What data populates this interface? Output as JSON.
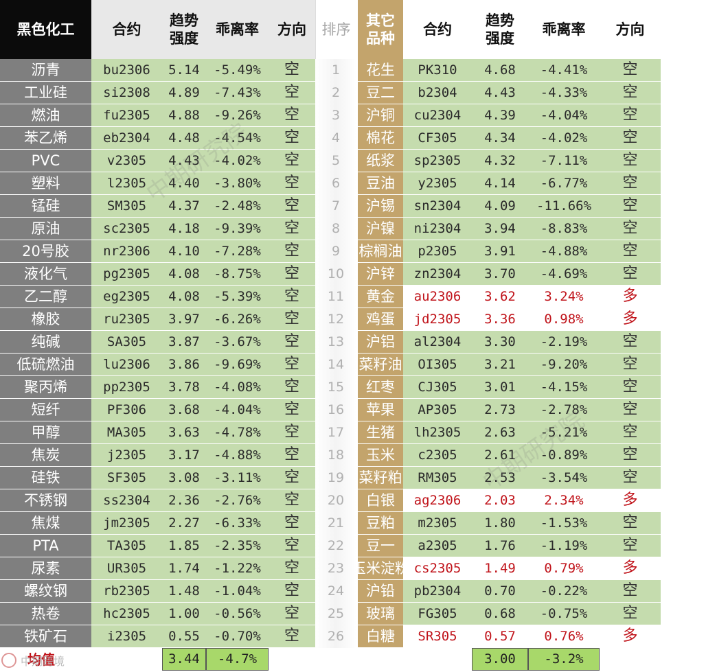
{
  "headers": {
    "cat_left": "黑色化工",
    "contract": "合约",
    "trend": "趋势\n强度",
    "deviation": "乖离率",
    "direction": "方向",
    "rank": "排序",
    "cat_right": "其它\n品种"
  },
  "rows": [
    {
      "rank": "1",
      "l_name": "沥青",
      "l_code": "bu2306",
      "l_trend": "5.14",
      "l_dev": "-5.49%",
      "l_dir": "空",
      "r_name": "花生",
      "r_code": "PK310",
      "r_trend": "4.68",
      "r_dev": "-4.41%",
      "r_dir": "空"
    },
    {
      "rank": "2",
      "l_name": "工业硅",
      "l_code": "si2308",
      "l_trend": "4.89",
      "l_dev": "-7.43%",
      "l_dir": "空",
      "r_name": "豆二",
      "r_code": "b2304",
      "r_trend": "4.43",
      "r_dev": "-4.33%",
      "r_dir": "空"
    },
    {
      "rank": "3",
      "l_name": "燃油",
      "l_code": "fu2305",
      "l_trend": "4.88",
      "l_dev": "-9.26%",
      "l_dir": "空",
      "r_name": "沪铜",
      "r_code": "cu2304",
      "r_trend": "4.39",
      "r_dev": "-4.04%",
      "r_dir": "空"
    },
    {
      "rank": "4",
      "l_name": "苯乙烯",
      "l_code": "eb2304",
      "l_trend": "4.48",
      "l_dev": "-4.54%",
      "l_dir": "空",
      "r_name": "棉花",
      "r_code": "CF305",
      "r_trend": "4.34",
      "r_dev": "-4.02%",
      "r_dir": "空"
    },
    {
      "rank": "5",
      "l_name": "PVC",
      "l_code": "v2305",
      "l_trend": "4.43",
      "l_dev": "-4.02%",
      "l_dir": "空",
      "r_name": "纸浆",
      "r_code": "sp2305",
      "r_trend": "4.32",
      "r_dev": "-7.11%",
      "r_dir": "空"
    },
    {
      "rank": "6",
      "l_name": "塑料",
      "l_code": "l2305",
      "l_trend": "4.40",
      "l_dev": "-3.80%",
      "l_dir": "空",
      "r_name": "豆油",
      "r_code": "y2305",
      "r_trend": "4.14",
      "r_dev": "-6.77%",
      "r_dir": "空"
    },
    {
      "rank": "7",
      "l_name": "锰硅",
      "l_code": "SM305",
      "l_trend": "4.37",
      "l_dev": "-2.48%",
      "l_dir": "空",
      "r_name": "沪锡",
      "r_code": "sn2304",
      "r_trend": "4.09",
      "r_dev": "-11.66%",
      "r_dir": "空"
    },
    {
      "rank": "8",
      "l_name": "原油",
      "l_code": "sc2305",
      "l_trend": "4.18",
      "l_dev": "-9.39%",
      "l_dir": "空",
      "r_name": "沪镍",
      "r_code": "ni2304",
      "r_trend": "3.94",
      "r_dev": "-8.83%",
      "r_dir": "空"
    },
    {
      "rank": "9",
      "l_name": "20号胶",
      "l_code": "nr2306",
      "l_trend": "4.10",
      "l_dev": "-7.28%",
      "l_dir": "空",
      "r_name": "棕榈油",
      "r_code": "p2305",
      "r_trend": "3.91",
      "r_dev": "-4.88%",
      "r_dir": "空"
    },
    {
      "rank": "10",
      "l_name": "液化气",
      "l_code": "pg2305",
      "l_trend": "4.08",
      "l_dev": "-8.75%",
      "l_dir": "空",
      "r_name": "沪锌",
      "r_code": "zn2304",
      "r_trend": "3.70",
      "r_dev": "-4.69%",
      "r_dir": "空"
    },
    {
      "rank": "11",
      "l_name": "乙二醇",
      "l_code": "eg2305",
      "l_trend": "4.08",
      "l_dev": "-5.39%",
      "l_dir": "空",
      "r_name": "黄金",
      "r_code": "au2306",
      "r_trend": "3.62",
      "r_dev": "3.24%",
      "r_dir": "多"
    },
    {
      "rank": "12",
      "l_name": "橡胶",
      "l_code": "ru2305",
      "l_trend": "3.97",
      "l_dev": "-6.26%",
      "l_dir": "空",
      "r_name": "鸡蛋",
      "r_code": "jd2305",
      "r_trend": "3.36",
      "r_dev": "0.98%",
      "r_dir": "多"
    },
    {
      "rank": "13",
      "l_name": "纯碱",
      "l_code": "SA305",
      "l_trend": "3.87",
      "l_dev": "-3.67%",
      "l_dir": "空",
      "r_name": "沪铝",
      "r_code": "al2304",
      "r_trend": "3.30",
      "r_dev": "-2.19%",
      "r_dir": "空"
    },
    {
      "rank": "14",
      "l_name": "低硫燃油",
      "l_code": "lu2306",
      "l_trend": "3.86",
      "l_dev": "-9.69%",
      "l_dir": "空",
      "r_name": "菜籽油",
      "r_code": "OI305",
      "r_trend": "3.21",
      "r_dev": "-9.20%",
      "r_dir": "空"
    },
    {
      "rank": "15",
      "l_name": "聚丙烯",
      "l_code": "pp2305",
      "l_trend": "3.78",
      "l_dev": "-4.08%",
      "l_dir": "空",
      "r_name": "红枣",
      "r_code": "CJ305",
      "r_trend": "3.01",
      "r_dev": "-4.15%",
      "r_dir": "空"
    },
    {
      "rank": "16",
      "l_name": "短纤",
      "l_code": "PF306",
      "l_trend": "3.68",
      "l_dev": "-4.04%",
      "l_dir": "空",
      "r_name": "苹果",
      "r_code": "AP305",
      "r_trend": "2.73",
      "r_dev": "-2.78%",
      "r_dir": "空"
    },
    {
      "rank": "17",
      "l_name": "甲醇",
      "l_code": "MA305",
      "l_trend": "3.63",
      "l_dev": "-4.78%",
      "l_dir": "空",
      "r_name": "生猪",
      "r_code": "lh2305",
      "r_trend": "2.63",
      "r_dev": "-5.21%",
      "r_dir": "空"
    },
    {
      "rank": "18",
      "l_name": "焦炭",
      "l_code": "j2305",
      "l_trend": "3.17",
      "l_dev": "-4.88%",
      "l_dir": "空",
      "r_name": "玉米",
      "r_code": "c2305",
      "r_trend": "2.61",
      "r_dev": "-0.89%",
      "r_dir": "空"
    },
    {
      "rank": "19",
      "l_name": "硅铁",
      "l_code": "SF305",
      "l_trend": "3.08",
      "l_dev": "-3.11%",
      "l_dir": "空",
      "r_name": "菜籽粕",
      "r_code": "RM305",
      "r_trend": "2.53",
      "r_dev": "-3.54%",
      "r_dir": "空"
    },
    {
      "rank": "20",
      "l_name": "不锈钢",
      "l_code": "ss2304",
      "l_trend": "2.36",
      "l_dev": "-2.76%",
      "l_dir": "空",
      "r_name": "白银",
      "r_code": "ag2306",
      "r_trend": "2.03",
      "r_dev": "2.34%",
      "r_dir": "多"
    },
    {
      "rank": "21",
      "l_name": "焦煤",
      "l_code": "jm2305",
      "l_trend": "2.27",
      "l_dev": "-6.33%",
      "l_dir": "空",
      "r_name": "豆粕",
      "r_code": "m2305",
      "r_trend": "1.80",
      "r_dev": "-1.53%",
      "r_dir": "空"
    },
    {
      "rank": "22",
      "l_name": "PTA",
      "l_code": "TA305",
      "l_trend": "1.85",
      "l_dev": "-2.35%",
      "l_dir": "空",
      "r_name": "豆一",
      "r_code": "a2305",
      "r_trend": "1.76",
      "r_dev": "-1.19%",
      "r_dir": "空"
    },
    {
      "rank": "23",
      "l_name": "尿素",
      "l_code": "UR305",
      "l_trend": "1.74",
      "l_dev": "-1.22%",
      "l_dir": "空",
      "r_name": "玉米淀粉",
      "r_code": "cs2305",
      "r_trend": "1.49",
      "r_dev": "0.79%",
      "r_dir": "多"
    },
    {
      "rank": "24",
      "l_name": "螺纹钢",
      "l_code": "rb2305",
      "l_trend": "1.48",
      "l_dev": "-1.04%",
      "l_dir": "空",
      "r_name": "沪铅",
      "r_code": "pb2304",
      "r_trend": "0.70",
      "r_dev": "-0.22%",
      "r_dir": "空"
    },
    {
      "rank": "25",
      "l_name": "热卷",
      "l_code": "hc2305",
      "l_trend": "1.00",
      "l_dev": "-0.56%",
      "l_dir": "空",
      "r_name": "玻璃",
      "r_code": "FG305",
      "r_trend": "0.68",
      "r_dev": "-0.75%",
      "r_dir": "空"
    },
    {
      "rank": "26",
      "l_name": "铁矿石",
      "l_code": "i2305",
      "l_trend": "0.55",
      "l_dev": "-0.70%",
      "l_dir": "空",
      "r_name": "白糖",
      "r_code": "SR305",
      "r_trend": "0.57",
      "r_dev": "0.76%",
      "r_dir": "多"
    }
  ],
  "footer": {
    "label": "均值",
    "left_trend_avg": "3.44",
    "left_dev_avg": "-4.7%",
    "right_trend_avg": "3.00",
    "right_dev_avg": "-3.2%"
  },
  "watermarks": {
    "wm1": "中期研究院",
    "wm2": "中期研究院",
    "brand": "中期跨境"
  },
  "colors": {
    "header_black": "#0b0b0b",
    "left_category_bg": "#7f7f7f",
    "value_green": "#c5dcae",
    "right_category_gold": "#c3a46c",
    "long_red": "#c0131a",
    "avg_green": "#a8d86a"
  },
  "icons": {
    "brand_logo": "brand-logo-icon"
  }
}
